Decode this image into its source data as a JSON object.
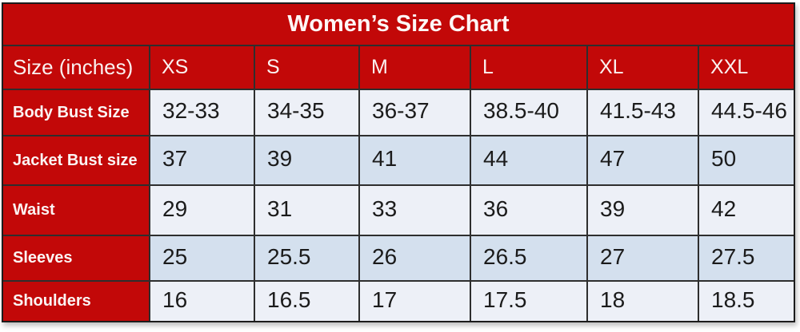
{
  "title": "Women’s Size Chart",
  "colors": {
    "red": "#c20808",
    "band_light": "#edf0f7",
    "band_dark": "#d4e0ee",
    "border": "#2e2e2e",
    "title_text": "#ffffff",
    "data_text": "#1b1b1b"
  },
  "table": {
    "header": [
      "Size (inches)",
      "XS",
      "S",
      "M",
      "L",
      "XL",
      "XXL"
    ],
    "rows": [
      {
        "label": "Body Bust Size",
        "values": [
          "32-33",
          "34-35",
          "36-37",
          "38.5-40",
          "41.5-43",
          "44.5-46"
        ]
      },
      {
        "label": "Jacket Bust size",
        "values": [
          "37",
          "39",
          "41",
          "44",
          "47",
          "50"
        ]
      },
      {
        "label": "Waist",
        "values": [
          "29",
          "31",
          "33",
          "36",
          "39",
          "42"
        ]
      },
      {
        "label": "Sleeves",
        "values": [
          "25",
          "25.5",
          "26",
          "26.5",
          "27",
          "27.5"
        ]
      },
      {
        "label": "Shoulders",
        "values": [
          "16",
          "16.5",
          "17",
          "17.5",
          "18",
          "18.5"
        ]
      }
    ]
  },
  "chart_data": {
    "type": "table",
    "title": "Women’s Size Chart",
    "unit": "inches",
    "columns": [
      "Size (inches)",
      "XS",
      "S",
      "M",
      "L",
      "XL",
      "XXL"
    ],
    "rows": [
      [
        "Body Bust Size",
        "32-33",
        "34-35",
        "36-37",
        "38.5-40",
        "41.5-43",
        "44.5-46"
      ],
      [
        "Jacket Bust size",
        "37",
        "39",
        "41",
        "44",
        "47",
        "50"
      ],
      [
        "Waist",
        "29",
        "31",
        "33",
        "36",
        "39",
        "42"
      ],
      [
        "Sleeves",
        "25",
        "25.5",
        "26",
        "26.5",
        "27",
        "27.5"
      ],
      [
        "Shoulders",
        "16",
        "16.5",
        "17",
        "17.5",
        "18",
        "18.5"
      ]
    ]
  }
}
